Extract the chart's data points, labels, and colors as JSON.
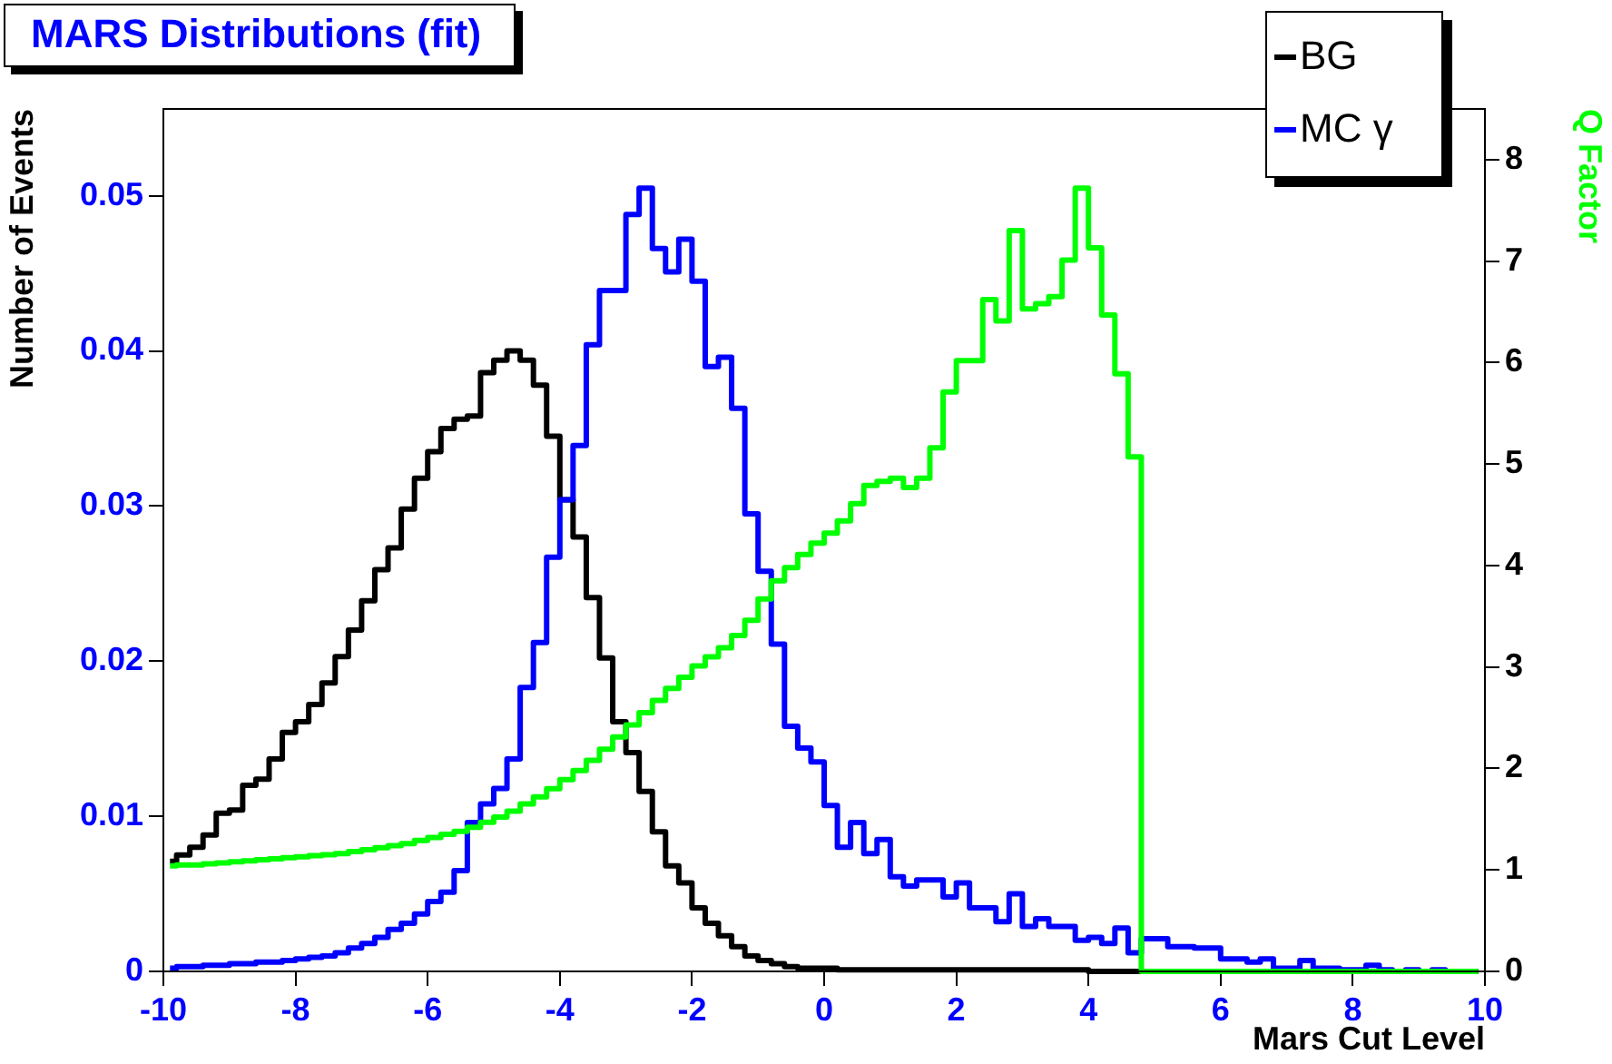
{
  "chart_data": {
    "type": "step",
    "title": "MARS Distributions (fit)",
    "xlabel": "Mars Cut Level",
    "ylabel": "Number of Events",
    "y2label": "Q Factor",
    "legend": "top right",
    "x": [
      -9.9,
      -9.7,
      -9.5,
      -9.3,
      -9.1,
      -8.9,
      -8.7,
      -8.5,
      -8.3,
      -8.1,
      -7.9,
      -7.7,
      -7.5,
      -7.3,
      -7.1,
      -6.9,
      -6.7,
      -6.5,
      -6.3,
      -6.1,
      -5.9,
      -5.7,
      -5.5,
      -5.3,
      -5.1,
      -4.9,
      -4.7,
      -4.5,
      -4.3,
      -4.1,
      -3.9,
      -3.7,
      -3.5,
      -3.3,
      -3.1,
      -2.9,
      -2.7,
      -2.5,
      -2.3,
      -2.1,
      -1.9,
      -1.7,
      -1.5,
      -1.3,
      -1.1,
      -0.9,
      -0.7,
      -0.5,
      -0.3,
      -0.1,
      0.1,
      0.3,
      0.5,
      0.7,
      0.9,
      1.1,
      1.3,
      1.5,
      1.7,
      1.9,
      2.1,
      2.3,
      2.5,
      2.7,
      2.9,
      3.1,
      3.3,
      3.5,
      3.7,
      3.9,
      4.1,
      4.3,
      4.5,
      4.7,
      4.9,
      5.1,
      5.3,
      5.5,
      5.7,
      5.9,
      6.1,
      6.3,
      6.5,
      6.7,
      6.9,
      7.1,
      7.3,
      7.5,
      7.7,
      7.9,
      8.1,
      8.3,
      8.5,
      8.7,
      8.9,
      9.1,
      9.3,
      9.5,
      9.7,
      9.9
    ],
    "series": [
      {
        "name": "BG",
        "color": "#000000",
        "values": [
          0.0071,
          0.0075,
          0.008,
          0.0088,
          0.0102,
          0.0104,
          0.012,
          0.0124,
          0.0137,
          0.0154,
          0.0161,
          0.0172,
          0.0186,
          0.0203,
          0.022,
          0.0239,
          0.0259,
          0.0273,
          0.0298,
          0.0318,
          0.0335,
          0.035,
          0.0356,
          0.0358,
          0.0386,
          0.0394,
          0.04,
          0.0394,
          0.0378,
          0.0345,
          0.0304,
          0.028,
          0.0241,
          0.0202,
          0.0161,
          0.0141,
          0.0116,
          0.009,
          0.0068,
          0.0057,
          0.0041,
          0.0031,
          0.0023,
          0.0016,
          0.001,
          0.0007,
          0.0005,
          0.0003,
          0.0002,
          0.0002,
          0.0002,
          0.0001,
          0.0001,
          0.0001,
          0.0001,
          0.0001,
          0.0001,
          0.0001,
          0.0001,
          0.0001,
          0.0001,
          0.0001,
          0.0001,
          0.0001,
          0.0001,
          0.0001,
          0.0001,
          0.0001,
          0.0001,
          0.0001,
          0,
          0,
          0,
          0,
          0,
          0,
          0,
          0,
          0,
          0,
          0,
          0,
          0,
          0,
          0,
          0,
          0,
          0,
          0,
          0,
          0,
          0,
          0,
          0,
          0,
          0,
          0,
          0,
          0,
          0
        ]
      },
      {
        "name": "MC γ",
        "color": "#0000ff",
        "values": [
          0.0002,
          0.0003,
          0.0003,
          0.0004,
          0.0004,
          0.0005,
          0.0005,
          0.0006,
          0.0006,
          0.0007,
          0.0008,
          0.0009,
          0.001,
          0.0012,
          0.0015,
          0.0018,
          0.0022,
          0.0027,
          0.0031,
          0.0037,
          0.0045,
          0.0051,
          0.0065,
          0.0096,
          0.0108,
          0.0118,
          0.0137,
          0.0183,
          0.0212,
          0.0267,
          0.0304,
          0.0339,
          0.0404,
          0.0439,
          0.0439,
          0.0488,
          0.0505,
          0.0466,
          0.0451,
          0.0472,
          0.0445,
          0.039,
          0.0396,
          0.0363,
          0.0295,
          0.0258,
          0.0211,
          0.0158,
          0.0144,
          0.0135,
          0.0107,
          0.008,
          0.0096,
          0.0076,
          0.0085,
          0.0061,
          0.0055,
          0.0059,
          0.0059,
          0.0048,
          0.0057,
          0.0041,
          0.0041,
          0.0032,
          0.005,
          0.0029,
          0.0034,
          0.0029,
          0.0029,
          0.002,
          0.0022,
          0.0018,
          0.0028,
          0.0012,
          0.0021,
          0.0021,
          0.0016,
          0.0016,
          0.0015,
          0.0015,
          0.0008,
          0.0008,
          0.0006,
          0.0008,
          0.0002,
          0.0002,
          0.0007,
          0.0002,
          0.0002,
          0.0001,
          0.0001,
          0.0004,
          0.0001,
          0,
          0.0001,
          0,
          0.0001,
          0,
          0,
          0
        ]
      },
      {
        "axis": "y2",
        "color": "#00ff00",
        "values": [
          1.04,
          1.05,
          1.05,
          1.06,
          1.07,
          1.08,
          1.09,
          1.1,
          1.11,
          1.12,
          1.13,
          1.14,
          1.15,
          1.16,
          1.18,
          1.2,
          1.22,
          1.24,
          1.26,
          1.29,
          1.32,
          1.35,
          1.38,
          1.42,
          1.47,
          1.52,
          1.58,
          1.65,
          1.72,
          1.8,
          1.89,
          1.98,
          2.08,
          2.19,
          2.31,
          2.43,
          2.55,
          2.67,
          2.79,
          2.9,
          3.01,
          3.1,
          3.19,
          3.31,
          3.46,
          3.67,
          3.85,
          3.98,
          4.11,
          4.22,
          4.32,
          4.44,
          4.61,
          4.79,
          4.83,
          4.86,
          4.77,
          4.86,
          5.16,
          5.71,
          6.02,
          6.02,
          6.62,
          6.41,
          7.3,
          6.53,
          6.58,
          6.65,
          7.01,
          7.72,
          7.13,
          6.47,
          5.89,
          5.07,
          0,
          0,
          0,
          0,
          0,
          0,
          0,
          0,
          0,
          0,
          0,
          0,
          0,
          0,
          0,
          0,
          0,
          0,
          0,
          0,
          0,
          0,
          0,
          0,
          0,
          0
        ]
      }
    ],
    "xlim": [
      -10,
      10
    ],
    "xticks": [
      -10,
      -8,
      -6,
      -4,
      -2,
      0,
      2,
      4,
      6,
      8,
      10
    ],
    "ylim": [
      0,
      0.0556
    ],
    "yticks": [
      0,
      0.01,
      0.02,
      0.03,
      0.04,
      0.05
    ],
    "y2lim": [
      0,
      8.5
    ],
    "y2ticks": [
      0,
      1,
      2,
      3,
      4,
      5,
      6,
      7,
      8
    ]
  }
}
